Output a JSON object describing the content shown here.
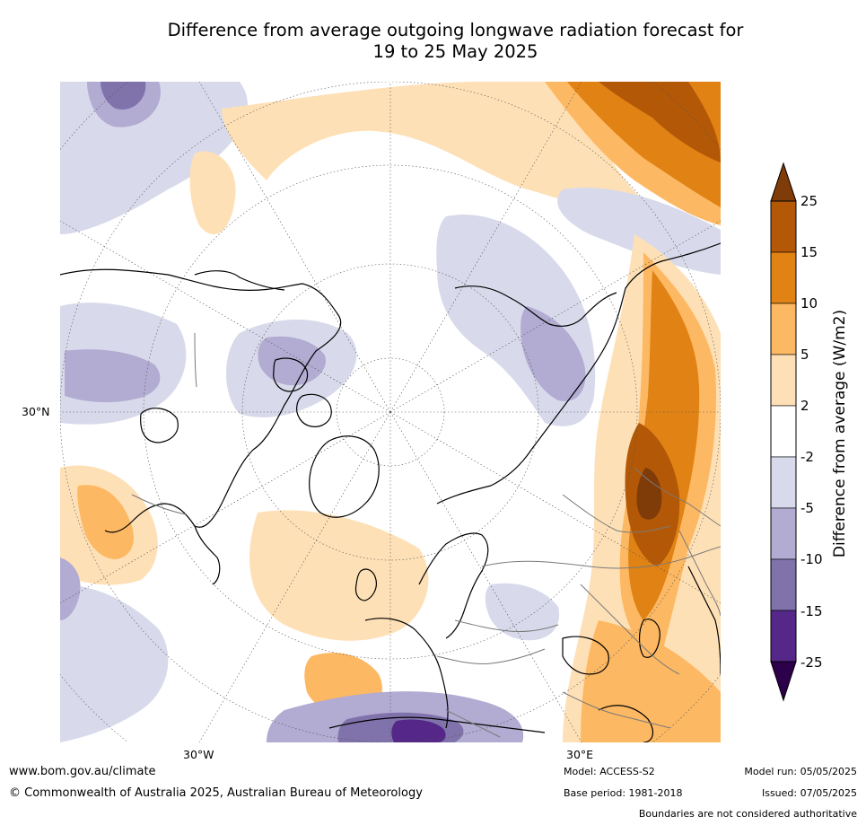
{
  "title": {
    "line1": "Difference from average outgoing longwave radiation forecast for",
    "line2": "19 to 25 May 2025"
  },
  "map": {
    "projection": "north-polar-stereographic",
    "lat_label": "30°N",
    "lon_labels": {
      "west": "30°W",
      "east": "30°E"
    },
    "layers": [
      "OLR anomaly shading",
      "coastlines",
      "country boundaries",
      "graticule"
    ]
  },
  "colorbar": {
    "title": "Difference from average (W/m2)",
    "ticks": [
      "25",
      "15",
      "10",
      "5",
      "2",
      "-2",
      "-5",
      "-10",
      "-15",
      "-25"
    ],
    "bins": [
      {
        "range": "> 25",
        "color": "#7f3b08"
      },
      {
        "range": "15 to 25",
        "color": "#b35806"
      },
      {
        "range": "10 to 15",
        "color": "#e08214"
      },
      {
        "range": "5 to 10",
        "color": "#fdb863"
      },
      {
        "range": "2 to 5",
        "color": "#fee0b6"
      },
      {
        "range": "-2 to 2",
        "color": "#ffffff"
      },
      {
        "range": "-5 to -2",
        "color": "#d8daeb"
      },
      {
        "range": "-10 to -5",
        "color": "#b2abd2"
      },
      {
        "range": "-15 to -10",
        "color": "#8073ac"
      },
      {
        "range": "-25 to -15",
        "color": "#542788"
      },
      {
        "range": "< -25",
        "color": "#2d004b"
      }
    ]
  },
  "footer": {
    "url": "www.bom.gov.au/climate",
    "copyright": "© Commonwealth of Australia 2025, Australian Bureau of Meteorology",
    "model": "Model: ACCESS-S2",
    "base_period": "Base period: 1981-2018",
    "model_run": "Model run: 05/05/2025",
    "issued": "Issued: 07/05/2025",
    "disclaimer": "Boundaries are not considered authoritative"
  }
}
